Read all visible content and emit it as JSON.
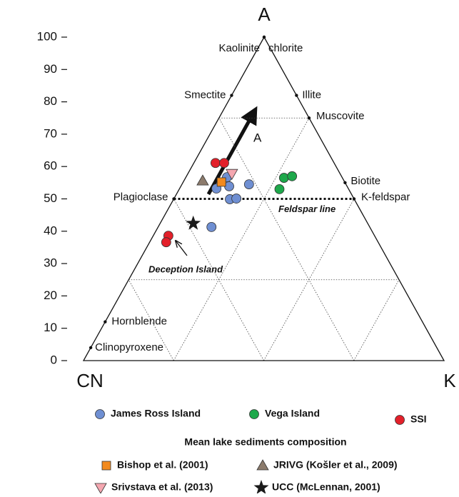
{
  "chart_data": {
    "type": "ternary",
    "vertices": [
      "A",
      "CN",
      "K"
    ],
    "ylim": [
      0,
      100
    ],
    "yticks": [
      0,
      10,
      20,
      30,
      40,
      50,
      60,
      70,
      80,
      90,
      100
    ],
    "grid": [
      25,
      50,
      75
    ],
    "feldspar_line": {
      "label": "Feldspar line",
      "value": 50
    },
    "minerals": [
      {
        "label": "Kaolinite",
        "a": 100,
        "k": 0
      },
      {
        "label": "chlorite",
        "a": 100,
        "k": 0
      },
      {
        "label": "Smectite",
        "a": 82,
        "k": 0
      },
      {
        "label": "Illite",
        "a": 82,
        "k": 18
      },
      {
        "label": "Muscovite",
        "a": 75,
        "k": 25
      },
      {
        "label": "Biotite",
        "a": 55,
        "k": 45
      },
      {
        "label": "K-feldspar",
        "a": 50,
        "k": 50
      },
      {
        "label": "Plagioclase",
        "a": 50,
        "k": 0
      },
      {
        "label": "Hornblende",
        "a": 12,
        "k": 0
      },
      {
        "label": "Clinopyroxene",
        "a": 4,
        "k": 0
      }
    ],
    "annotations": [
      "A",
      "Deception Island"
    ],
    "legend_title": "Mean lake sediments composition",
    "series": [
      {
        "name": "James Ross Island",
        "color": "#6f8fd2",
        "marker": "circle",
        "values": [
          53.2,
          56.7,
          53.9,
          49.9,
          50.1,
          54.5,
          41.3
        ],
        "k": [
          10.2,
          11.4,
          13.4,
          15.6,
          17.3,
          18.6,
          14.8
        ]
      },
      {
        "name": "Vega Island",
        "color": "#1ea84b",
        "marker": "circle",
        "values": [
          56.5,
          57.0,
          53.0
        ],
        "k": [
          27.3,
          29.3,
          27.8
        ]
      },
      {
        "name": "SSI",
        "color": "#e3202a",
        "marker": "circle",
        "values": [
          61.1,
          61.1,
          38.6,
          36.6
        ],
        "k": [
          6.0,
          8.4,
          4.2,
          4.6
        ]
      },
      {
        "name": "Bishop et al. (2001)",
        "color": "#f28a1e",
        "marker": "square",
        "values": [
          55.2
        ],
        "k": [
          10.6
        ]
      },
      {
        "name": "JRIVG (Košler et al., 2009)",
        "color": "#8c7b6c",
        "marker": "triangle",
        "values": [
          55.6
        ],
        "k": [
          5.2
        ]
      },
      {
        "name": "Srivstava et al. (2013)",
        "color": "#f4a7b0",
        "marker": "triangle-down",
        "values": [
          57.8
        ],
        "k": [
          12.2
        ]
      },
      {
        "name": "UCC (McLennan, 2001)",
        "color": "#1a1a1a",
        "marker": "star",
        "values": [
          42.4
        ],
        "k": [
          9.2
        ]
      }
    ]
  }
}
